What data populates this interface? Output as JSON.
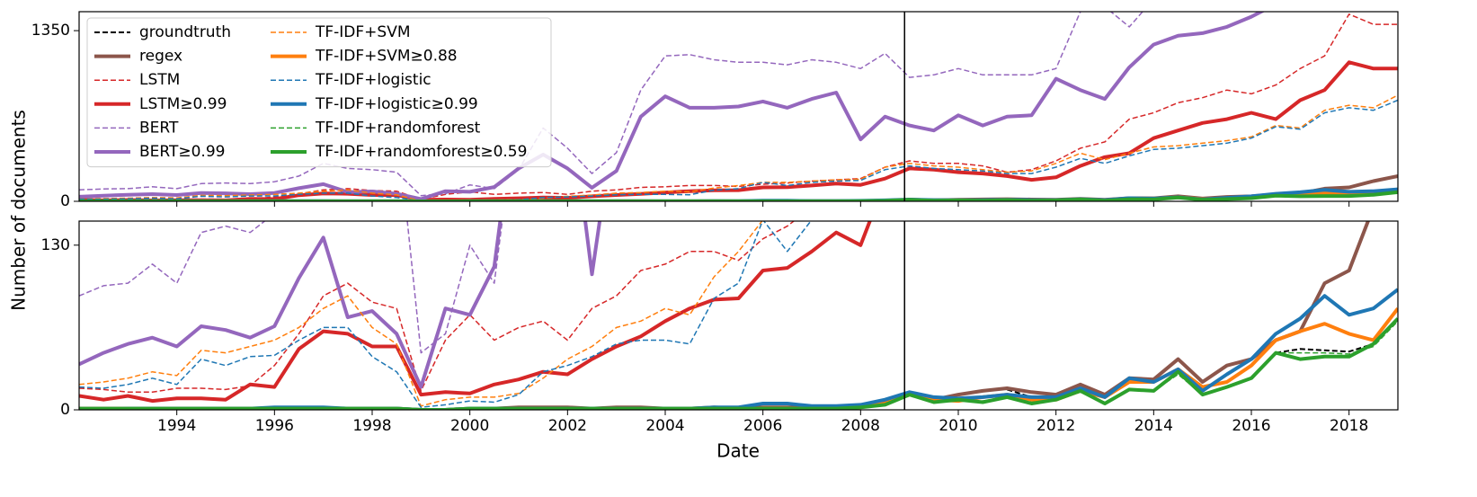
{
  "chart_data": {
    "type": "line",
    "x_label": "Date",
    "y_label": "Number of documents",
    "x": [
      1992,
      1992.5,
      1993,
      1993.5,
      1994,
      1994.5,
      1995,
      1995.5,
      1996,
      1996.5,
      1997,
      1997.5,
      1998,
      1998.5,
      1999,
      1999.5,
      2000,
      2000.5,
      2001,
      2001.5,
      2002,
      2002.5,
      2003,
      2003.5,
      2004,
      2004.5,
      2005,
      2005.5,
      2006,
      2006.5,
      2007,
      2007.5,
      2008,
      2008.5,
      2009,
      2009.5,
      2010,
      2010.5,
      2011,
      2011.5,
      2012,
      2012.5,
      2013,
      2013.5,
      2014,
      2014.5,
      2015,
      2015.5,
      2016,
      2016.5,
      2017,
      2017.5,
      2018,
      2018.5,
      2019
    ],
    "xlim": [
      1992,
      2019
    ],
    "xticks": [
      1994,
      1996,
      1998,
      2000,
      2002,
      2004,
      2006,
      2008,
      2010,
      2012,
      2014,
      2016,
      2018
    ],
    "vline": 2008.9,
    "panels": [
      {
        "ylim": [
          0,
          1500
        ],
        "yticks": [
          0,
          1350
        ]
      },
      {
        "ylim": [
          0,
          149
        ],
        "yticks": [
          0,
          130
        ]
      }
    ],
    "legend": "upper left",
    "series": [
      {
        "name": "groundtruth",
        "color": "#000000",
        "style": "dashed",
        "linewidth": 2,
        "values": [
          null,
          null,
          null,
          null,
          null,
          null,
          null,
          null,
          null,
          null,
          null,
          null,
          null,
          null,
          null,
          null,
          null,
          null,
          null,
          null,
          null,
          null,
          null,
          null,
          null,
          null,
          null,
          null,
          null,
          null,
          null,
          null,
          null,
          null,
          null,
          null,
          null,
          null,
          16,
          10,
          null,
          null,
          null,
          null,
          null,
          null,
          null,
          null,
          null,
          45,
          48,
          47,
          46,
          52,
          null
        ]
      },
      {
        "name": "regex",
        "color": "#8c564b",
        "style": "solid",
        "linewidth": 4,
        "values": [
          1,
          1,
          1,
          1,
          1,
          1,
          1,
          1,
          1,
          1,
          1,
          1,
          1,
          1,
          0,
          0,
          1,
          1,
          2,
          2,
          2,
          1,
          2,
          2,
          1,
          1,
          2,
          1,
          2,
          2,
          2,
          2,
          3,
          6,
          13,
          8,
          12,
          15,
          17,
          14,
          12,
          20,
          12,
          25,
          24,
          40,
          22,
          35,
          40,
          55,
          62,
          100,
          110,
          160,
          200
        ]
      },
      {
        "name": "LSTM",
        "color": "#d62728",
        "style": "dashed",
        "linewidth": 1.5,
        "values": [
          17,
          16,
          14,
          14,
          17,
          17,
          16,
          19,
          35,
          60,
          90,
          100,
          85,
          80,
          15,
          55,
          75,
          55,
          65,
          70,
          55,
          80,
          90,
          110,
          115,
          125,
          125,
          118,
          135,
          145,
          160,
          170,
          180,
          270,
          320,
          300,
          300,
          280,
          230,
          250,
          320,
          420,
          470,
          650,
          700,
          780,
          820,
          880,
          850,
          920,
          1050,
          1150,
          1480,
          1400,
          1400
        ]
      },
      {
        "name": "LSTM≥0.99",
        "color": "#d62728",
        "style": "solid",
        "linewidth": 4,
        "values": [
          11,
          8,
          11,
          7,
          9,
          9,
          8,
          20,
          18,
          48,
          62,
          60,
          50,
          50,
          12,
          14,
          13,
          20,
          24,
          30,
          28,
          40,
          50,
          58,
          70,
          80,
          87,
          88,
          110,
          112,
          125,
          140,
          130,
          180,
          260,
          250,
          230,
          220,
          200,
          170,
          190,
          280,
          350,
          380,
          500,
          560,
          620,
          650,
          700,
          650,
          800,
          880,
          1100,
          1050,
          1050
        ]
      },
      {
        "name": "BERT",
        "color": "#9467bd",
        "style": "dashed",
        "linewidth": 1.5,
        "values": [
          90,
          98,
          100,
          115,
          100,
          140,
          145,
          140,
          155,
          200,
          300,
          260,
          250,
          230,
          45,
          60,
          130,
          100,
          250,
          580,
          420,
          220,
          385,
          880,
          1150,
          1160,
          1120,
          1100,
          1100,
          1080,
          1120,
          1100,
          1050,
          1170,
          980,
          1000,
          1050,
          1000,
          1000,
          1000,
          1050,
          1500,
          1540,
          1380,
          1600,
          1650,
          1700,
          1720,
          1750,
          1800,
          1850,
          1900,
          1950,
          2000,
          2050
        ]
      },
      {
        "name": "BERT≥0.99",
        "color": "#9467bd",
        "style": "solid",
        "linewidth": 4,
        "values": [
          36,
          45,
          52,
          57,
          50,
          66,
          63,
          57,
          66,
          104,
          136,
          73,
          78,
          60,
          18,
          80,
          75,
          113,
          260,
          370,
          260,
          107,
          240,
          670,
          830,
          740,
          740,
          750,
          790,
          740,
          810,
          860,
          490,
          670,
          600,
          560,
          680,
          600,
          670,
          680,
          970,
          880,
          810,
          1060,
          1240,
          1310,
          1330,
          1380,
          1460,
          1560,
          1650,
          1700,
          1750,
          1800,
          1850
        ]
      },
      {
        "name": "TF-IDF+SVM",
        "color": "#ff7f0e",
        "style": "dashed",
        "linewidth": 1.5,
        "values": [
          20,
          22,
          25,
          30,
          27,
          47,
          45,
          50,
          55,
          65,
          80,
          90,
          65,
          52,
          3,
          8,
          10,
          10,
          13,
          25,
          40,
          50,
          65,
          70,
          80,
          75,
          105,
          125,
          150,
          150,
          160,
          170,
          175,
          270,
          300,
          280,
          270,
          250,
          230,
          240,
          300,
          380,
          330,
          380,
          430,
          440,
          460,
          480,
          510,
          600,
          580,
          720,
          760,
          740,
          840
        ]
      },
      {
        "name": "TF-IDF+SVM≥0.88",
        "color": "#ff7f0e",
        "style": "solid",
        "linewidth": 4,
        "values": [
          0,
          0,
          0,
          0,
          0,
          0,
          0,
          0,
          0,
          0,
          0,
          0,
          0,
          0,
          0,
          0,
          0,
          0,
          0,
          0,
          0,
          0,
          0,
          0,
          0,
          0,
          0,
          0,
          1,
          1,
          1,
          1,
          2,
          5,
          12,
          8,
          7,
          10,
          12,
          8,
          8,
          15,
          10,
          22,
          22,
          32,
          18,
          22,
          35,
          55,
          62,
          68,
          60,
          55,
          80
        ]
      },
      {
        "name": "TF-IDF+logistic",
        "color": "#1f77b4",
        "style": "dashed",
        "linewidth": 1.5,
        "values": [
          18,
          17,
          20,
          25,
          20,
          40,
          35,
          42,
          43,
          55,
          65,
          65,
          42,
          30,
          2,
          4,
          7,
          6,
          12,
          30,
          35,
          42,
          52,
          55,
          55,
          52,
          88,
          100,
          150,
          125,
          150,
          160,
          165,
          250,
          280,
          260,
          250,
          240,
          220,
          220,
          270,
          340,
          300,
          360,
          410,
          420,
          440,
          460,
          500,
          590,
          570,
          700,
          740,
          720,
          800
        ]
      },
      {
        "name": "TF-IDF+logistic≥0.99",
        "color": "#1f77b4",
        "style": "solid",
        "linewidth": 4,
        "values": [
          0,
          0,
          1,
          1,
          1,
          1,
          1,
          1,
          2,
          2,
          2,
          1,
          1,
          1,
          0,
          0,
          1,
          1,
          1,
          1,
          1,
          1,
          1,
          1,
          1,
          1,
          2,
          2,
          5,
          5,
          3,
          3,
          4,
          8,
          14,
          10,
          9,
          10,
          12,
          10,
          10,
          17,
          10,
          25,
          22,
          32,
          15,
          28,
          40,
          60,
          72,
          90,
          75,
          80,
          95
        ]
      },
      {
        "name": "TF-IDF+randomforest",
        "color": "#2ca02c",
        "style": "dashed",
        "linewidth": 1.5,
        "values": [
          0,
          0,
          0,
          0,
          0,
          0,
          0,
          0,
          0,
          0,
          0,
          0,
          0,
          0,
          0,
          0,
          0,
          0,
          0,
          0,
          0,
          0,
          0,
          0,
          0,
          0,
          0,
          0,
          1,
          1,
          1,
          1,
          2,
          4,
          12,
          6,
          8,
          7,
          10,
          6,
          8,
          14,
          6,
          16,
          15,
          28,
          12,
          18,
          25,
          45,
          45,
          45,
          44,
          50,
          70
        ]
      },
      {
        "name": "TF-IDF+randomforest≥0.59",
        "color": "#2ca02c",
        "style": "solid",
        "linewidth": 4,
        "values": [
          1,
          1,
          1,
          1,
          1,
          1,
          1,
          1,
          1,
          1,
          1,
          1,
          1,
          1,
          0,
          0,
          1,
          1,
          1,
          1,
          1,
          1,
          1,
          1,
          1,
          1,
          1,
          1,
          1,
          1,
          1,
          1,
          2,
          4,
          12,
          6,
          8,
          6,
          10,
          5,
          8,
          15,
          5,
          16,
          15,
          30,
          12,
          18,
          25,
          45,
          40,
          42,
          42,
          52,
          72
        ]
      }
    ]
  }
}
